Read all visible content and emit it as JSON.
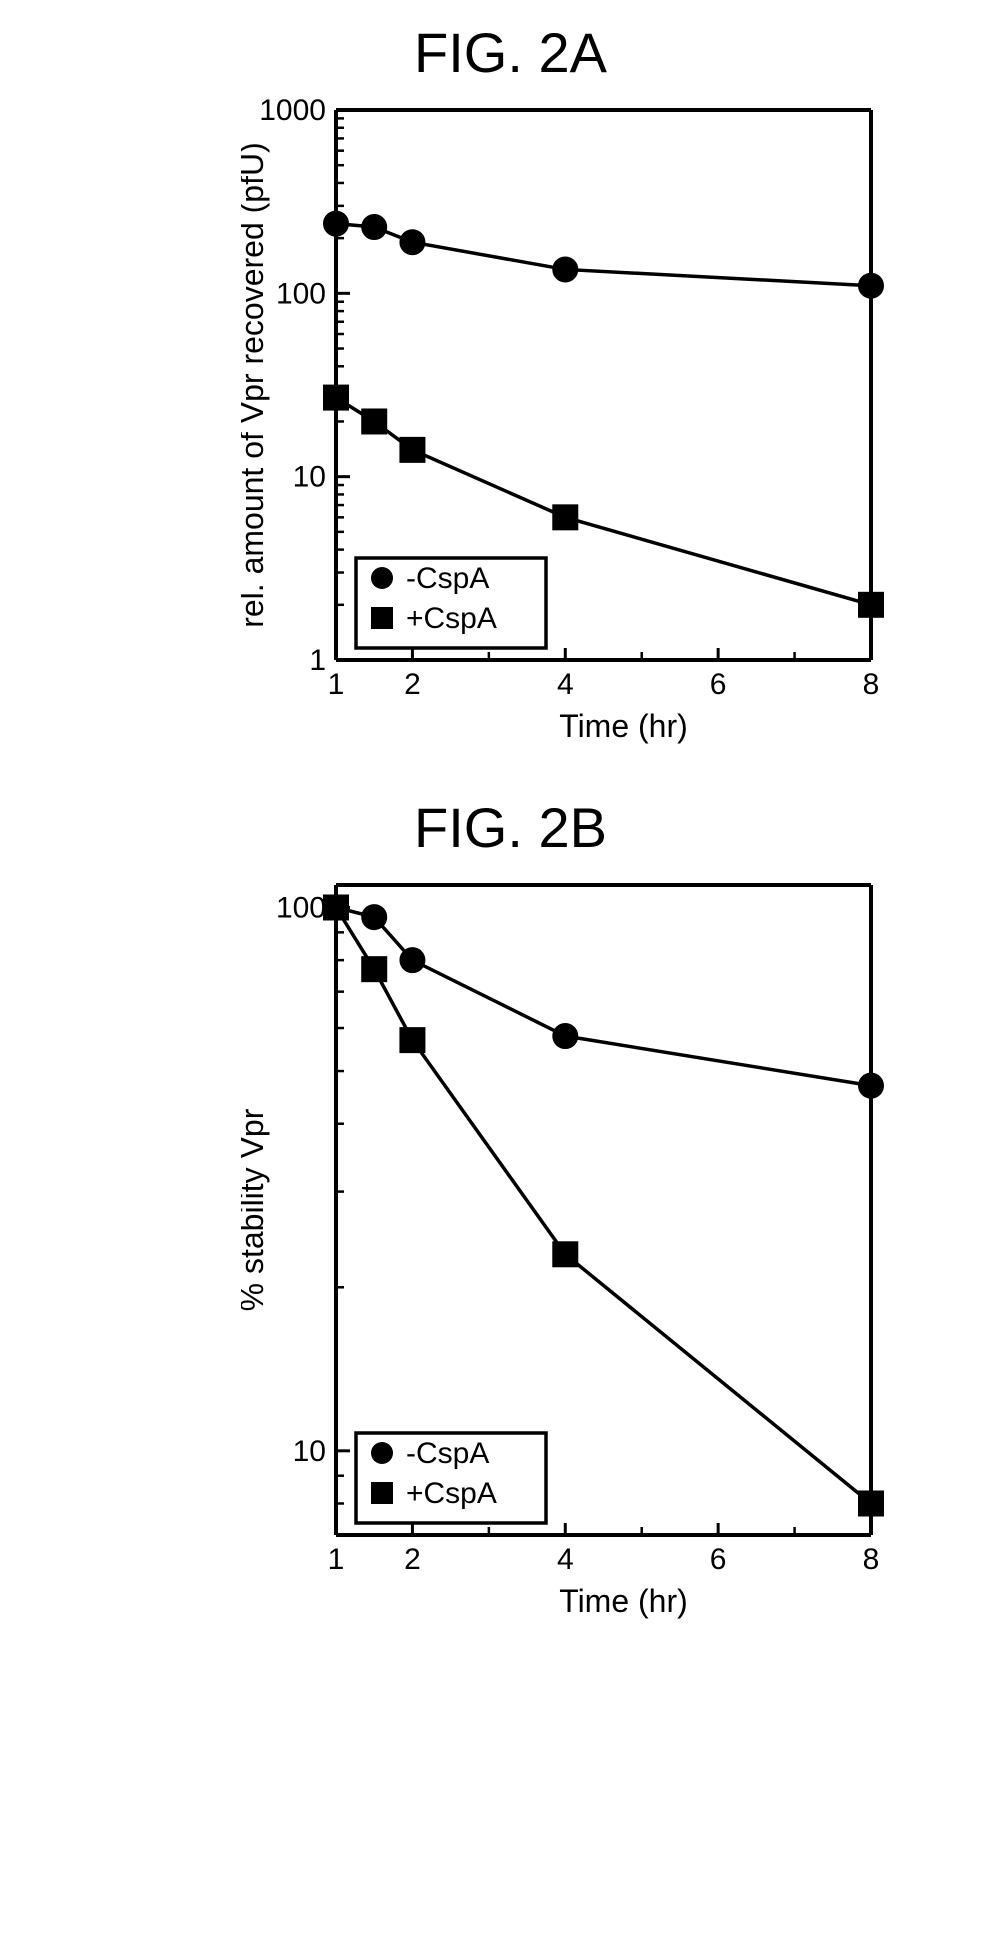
{
  "figA": {
    "title": "FIG. 2A",
    "type": "line",
    "xlim": [
      1,
      8
    ],
    "ylim": [
      1,
      1000
    ],
    "yscale": "log",
    "xlabel": "Time (hr)",
    "ylabel": "rel. amount of Vpr recovered (pfU)",
    "xticks": [
      1,
      2,
      4,
      6,
      8
    ],
    "yticks": [
      1,
      10,
      100,
      1000
    ],
    "title_fontsize": 56,
    "label_fontsize": 32,
    "tick_fontsize": 30,
    "legend_fontsize": 30,
    "line_color": "#000000",
    "marker_fill": "#000000",
    "line_width": 3.5,
    "marker_size": 12,
    "background_color": "#ffffff",
    "axis_width": 4,
    "series": [
      {
        "name": "-CspA",
        "marker": "circle",
        "x": [
          1,
          1.5,
          2,
          4,
          8
        ],
        "y": [
          240,
          230,
          190,
          135,
          110
        ]
      },
      {
        "name": "+CspA",
        "marker": "square",
        "x": [
          1,
          1.5,
          2,
          4,
          8
        ],
        "y": [
          27,
          20,
          14,
          6,
          2
        ]
      }
    ],
    "legend_pos": "lower-left"
  },
  "figB": {
    "title": "FIG. 2B",
    "type": "line",
    "xlim": [
      1,
      8
    ],
    "ylim": [
      7,
      110
    ],
    "yscale": "log",
    "xlabel": "Time (hr)",
    "ylabel": "% stability Vpr",
    "xticks": [
      1,
      2,
      4,
      6,
      8
    ],
    "yticks": [
      10,
      100
    ],
    "ylim_display": [
      7,
      110
    ],
    "title_fontsize": 56,
    "label_fontsize": 32,
    "tick_fontsize": 30,
    "legend_fontsize": 30,
    "line_color": "#000000",
    "marker_fill": "#000000",
    "line_width": 3.5,
    "marker_size": 12,
    "background_color": "#ffffff",
    "axis_width": 4,
    "series": [
      {
        "name": "-CspA",
        "marker": "circle",
        "x": [
          1,
          1.5,
          2,
          4,
          8
        ],
        "y": [
          100,
          96,
          80,
          58,
          47
        ]
      },
      {
        "name": "+CspA",
        "marker": "square",
        "x": [
          1,
          1.5,
          2,
          4,
          8
        ],
        "y": [
          100,
          77,
          57,
          23,
          8
        ]
      }
    ],
    "legend_pos": "lower-left"
  }
}
